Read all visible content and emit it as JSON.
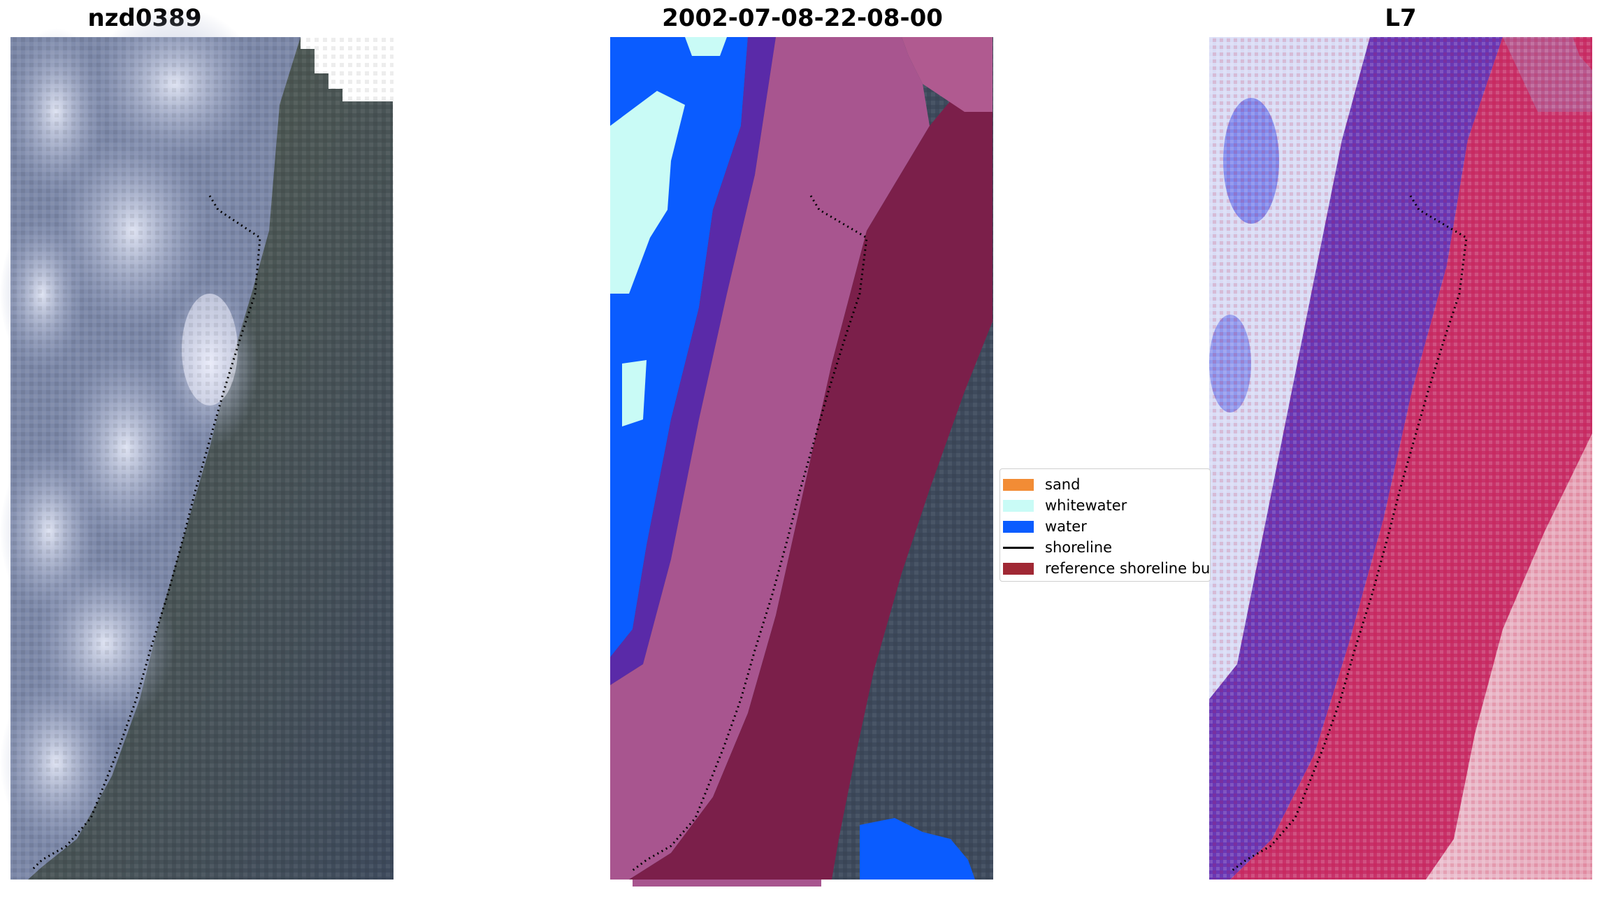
{
  "titles": {
    "left": "nzd0389",
    "center": "2002-07-08-22-08-00",
    "right": "L7"
  },
  "legend": {
    "items": [
      {
        "label": "sand",
        "color": "#f28c35",
        "kind": "patch"
      },
      {
        "label": "whitewater",
        "color": "#c9fbf6",
        "kind": "patch"
      },
      {
        "label": "water",
        "color": "#0a5cff",
        "kind": "patch"
      },
      {
        "label": "shoreline",
        "color": "#000000",
        "kind": "line"
      },
      {
        "label": "reference shoreline bu",
        "color": "#a02834",
        "kind": "patch"
      }
    ]
  },
  "colors": {
    "water_deep": "#53617a",
    "surf_white": "#d6dcf0",
    "land_green": "#4c5a52",
    "buffer_magenta": "#a8558f",
    "buffer_dark": "#7b1f4a",
    "purple": "#5a2aa8",
    "index_blue": "#3b46e0",
    "index_red": "#d8224a"
  }
}
